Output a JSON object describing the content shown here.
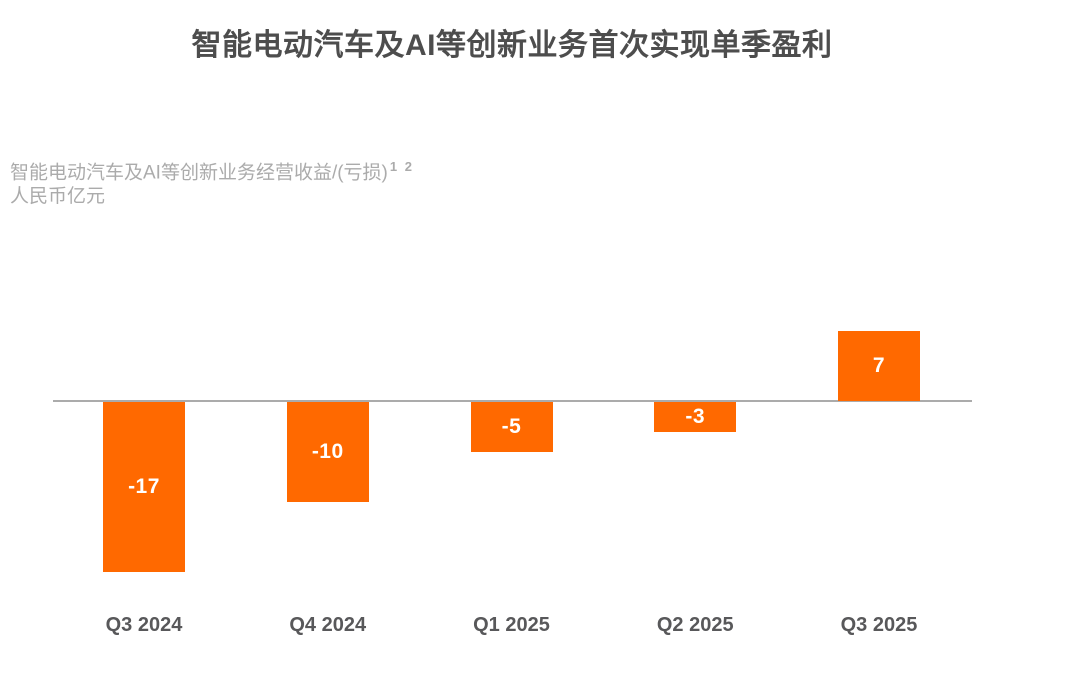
{
  "chart_data": {
    "type": "bar",
    "title": "智能电动汽车及AI等创新业务首次实现单季盈利",
    "metric_label": "智能电动汽车及AI等创新业务经营收益/(亏损)",
    "footnote_markers": "1 2",
    "unit_label": "人民币亿元",
    "categories": [
      "Q3 2024",
      "Q4 2024",
      "Q1 2025",
      "Q2 2025",
      "Q3 2025"
    ],
    "values": [
      -17,
      -10,
      -5,
      -3,
      7
    ],
    "data_labels": [
      "-17",
      "-10",
      "-5",
      "-3",
      "7"
    ],
    "ylabel": "人民币亿元",
    "xlabel": "",
    "ylim": [
      -17,
      7
    ],
    "grid": false,
    "legend": "none",
    "baseline": 0,
    "colors": {
      "bar": "#ff6900",
      "axis_line": "#ababab",
      "title_text": "#4d4d4d",
      "subtitle_text": "#ababab",
      "category_text": "#58585a",
      "value_text": "#ffffff"
    }
  }
}
